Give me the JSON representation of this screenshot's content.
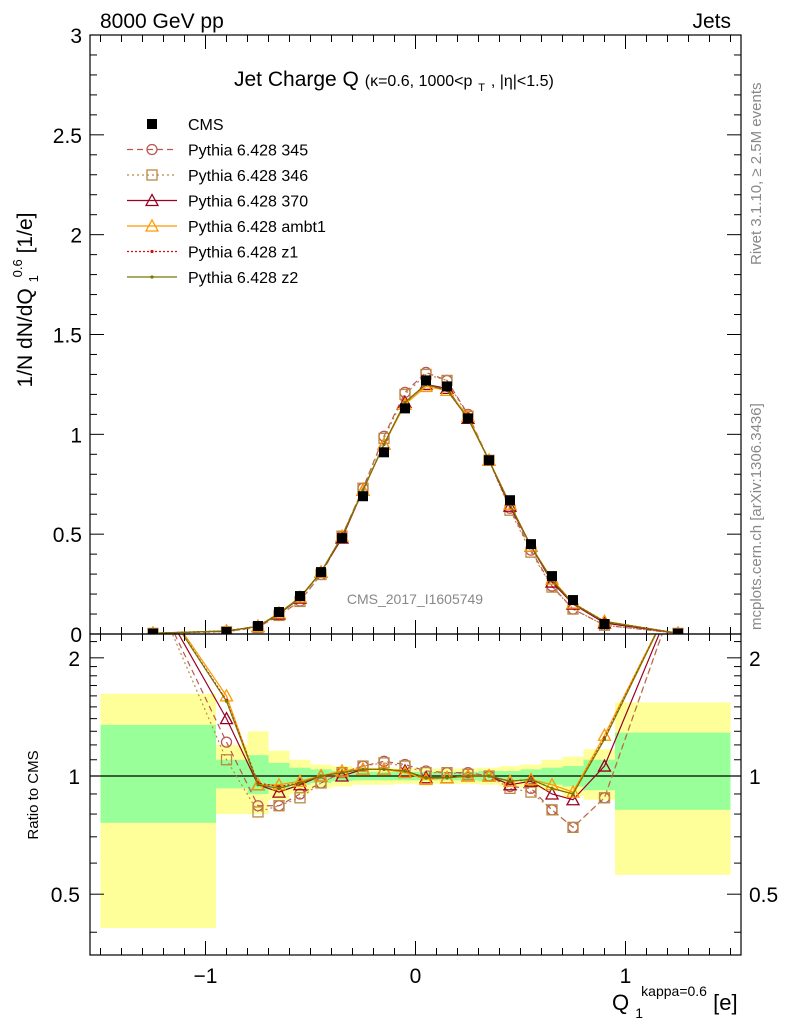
{
  "header": {
    "left": "8000 GeV pp",
    "right": "Jets"
  },
  "side_labels": {
    "rivet": "Rivet 3.1.10, ≥ 2.5M events",
    "mcplots": "mcplots.cern.ch [arXiv:1306.3436]"
  },
  "watermark": "CMS_2017_I1605749",
  "colors": {
    "green_band": "#99ff99",
    "yellow_band": "#ffff99",
    "p345": "#bb5555",
    "p346": "#bb8844",
    "p370": "#990022",
    "ambt1": "#ff9900",
    "z1": "#cc1111",
    "z2": "#777700"
  },
  "chart_data": [
    {
      "type": "line",
      "title": "Jet Charge Q",
      "title_suffix": "(κ=0.6, 1000<p",
      "title_sub": "T",
      "title_tail": ", |η|<1.5)",
      "ylabel": "1/N dN/dQ",
      "ylabel_sub": "1",
      "ylabel_sup": "0.6",
      "ylabel_unit": " [1/e]",
      "xlim": [
        -1.55,
        1.55
      ],
      "ylim": [
        0,
        3
      ],
      "yticks": [
        "0",
        "0.5",
        "1",
        "1.5",
        "2",
        "2.5",
        "3"
      ],
      "x": [
        -1.25,
        -0.9,
        -0.75,
        -0.65,
        -0.55,
        -0.45,
        -0.35,
        -0.25,
        -0.15,
        -0.05,
        0.05,
        0.15,
        0.25,
        0.35,
        0.45,
        0.55,
        0.65,
        0.75,
        0.9,
        1.25
      ],
      "legend": [
        "CMS",
        "Pythia 6.428 345",
        "Pythia 6.428 346",
        "Pythia 6.428 370",
        "Pythia 6.428 ambt1",
        "Pythia 6.428 z1",
        "Pythia 6.428 z2"
      ],
      "series": [
        {
          "name": "CMS",
          "values": [
            0.002,
            0.01,
            0.04,
            0.11,
            0.19,
            0.31,
            0.48,
            0.69,
            0.91,
            1.13,
            1.27,
            1.24,
            1.08,
            0.87,
            0.67,
            0.45,
            0.29,
            0.17,
            0.05,
            0.002
          ]
        },
        {
          "name": "Pythia 6.428 345",
          "values": [
            0.003,
            0.013,
            0.034,
            0.093,
            0.165,
            0.298,
            0.49,
            0.73,
            0.99,
            1.21,
            1.31,
            1.27,
            1.1,
            0.87,
            0.63,
            0.42,
            0.24,
            0.125,
            0.044,
            0.003
          ]
        },
        {
          "name": "Pythia 6.428 346",
          "values": [
            0.003,
            0.011,
            0.033,
            0.093,
            0.163,
            0.298,
            0.49,
            0.73,
            0.98,
            1.2,
            1.3,
            1.27,
            1.09,
            0.87,
            0.62,
            0.41,
            0.235,
            0.125,
            0.044,
            0.003
          ]
        },
        {
          "name": "Pythia 6.428 370",
          "values": [
            0.004,
            0.014,
            0.038,
            0.1,
            0.18,
            0.31,
            0.48,
            0.72,
            0.95,
            1.16,
            1.25,
            1.23,
            1.08,
            0.87,
            0.64,
            0.44,
            0.26,
            0.15,
            0.055,
            0.004
          ]
        },
        {
          "name": "Pythia 6.428 ambt1",
          "values": [
            0.004,
            0.016,
            0.038,
            0.105,
            0.185,
            0.31,
            0.49,
            0.72,
            0.95,
            1.15,
            1.24,
            1.22,
            1.09,
            0.87,
            0.65,
            0.44,
            0.275,
            0.155,
            0.064,
            0.004
          ]
        },
        {
          "name": "Pythia 6.428 z1",
          "values": [
            0.004,
            0.016,
            0.039,
            0.103,
            0.183,
            0.31,
            0.49,
            0.72,
            0.95,
            1.16,
            1.25,
            1.22,
            1.08,
            0.87,
            0.65,
            0.44,
            0.27,
            0.155,
            0.063,
            0.004
          ]
        },
        {
          "name": "Pythia 6.428 z2",
          "values": [
            0.004,
            0.015,
            0.038,
            0.102,
            0.182,
            0.31,
            0.49,
            0.72,
            0.95,
            1.16,
            1.25,
            1.22,
            1.08,
            0.87,
            0.65,
            0.44,
            0.27,
            0.153,
            0.062,
            0.004
          ]
        }
      ]
    },
    {
      "type": "line",
      "ylabel": "Ratio to CMS",
      "xlabel": "Q",
      "xlabel_sub": "1",
      "xlabel_sup": "kappa=0.6",
      "xlabel_unit": " [e]",
      "xlim": [
        -1.55,
        1.55
      ],
      "ylim": [
        0.35,
        2.3
      ],
      "yticks": [
        "0.5",
        "1",
        "2"
      ],
      "xticks": [
        "−1",
        "0",
        "1"
      ],
      "reference_line": 1,
      "bands": [
        {
          "x0": -1.5,
          "x1": -0.95,
          "green": [
            0.76,
            1.35
          ],
          "yellow": [
            0.41,
            1.62
          ]
        },
        {
          "x0": -0.95,
          "x1": -0.8,
          "green": [
            0.93,
            1.1
          ],
          "yellow": [
            0.8,
            1.2
          ]
        },
        {
          "x0": -0.8,
          "x1": -0.7,
          "green": [
            0.9,
            1.13
          ],
          "yellow": [
            0.8,
            1.3
          ]
        },
        {
          "x0": -0.7,
          "x1": -0.6,
          "green": [
            0.93,
            1.08
          ],
          "yellow": [
            0.87,
            1.16
          ]
        },
        {
          "x0": -0.6,
          "x1": -0.5,
          "green": [
            0.95,
            1.05
          ],
          "yellow": [
            0.9,
            1.1
          ]
        },
        {
          "x0": -0.5,
          "x1": -0.4,
          "green": [
            0.96,
            1.04
          ],
          "yellow": [
            0.93,
            1.07
          ]
        },
        {
          "x0": -0.4,
          "x1": -0.3,
          "green": [
            0.97,
            1.03
          ],
          "yellow": [
            0.94,
            1.06
          ]
        },
        {
          "x0": -0.3,
          "x1": -0.2,
          "green": [
            0.975,
            1.025
          ],
          "yellow": [
            0.95,
            1.05
          ]
        },
        {
          "x0": -0.2,
          "x1": -0.1,
          "green": [
            0.975,
            1.025
          ],
          "yellow": [
            0.95,
            1.05
          ]
        },
        {
          "x0": -0.1,
          "x1": 0.0,
          "green": [
            0.975,
            1.025
          ],
          "yellow": [
            0.955,
            1.045
          ]
        },
        {
          "x0": 0.0,
          "x1": 0.1,
          "green": [
            0.975,
            1.025
          ],
          "yellow": [
            0.955,
            1.045
          ]
        },
        {
          "x0": 0.1,
          "x1": 0.2,
          "green": [
            0.975,
            1.025
          ],
          "yellow": [
            0.955,
            1.045
          ]
        },
        {
          "x0": 0.2,
          "x1": 0.3,
          "green": [
            0.975,
            1.025
          ],
          "yellow": [
            0.955,
            1.045
          ]
        },
        {
          "x0": 0.3,
          "x1": 0.4,
          "green": [
            0.97,
            1.03
          ],
          "yellow": [
            0.95,
            1.05
          ]
        },
        {
          "x0": 0.4,
          "x1": 0.5,
          "green": [
            0.97,
            1.03
          ],
          "yellow": [
            0.94,
            1.06
          ]
        },
        {
          "x0": 0.5,
          "x1": 0.6,
          "green": [
            0.96,
            1.04
          ],
          "yellow": [
            0.93,
            1.07
          ]
        },
        {
          "x0": 0.6,
          "x1": 0.7,
          "green": [
            0.95,
            1.05
          ],
          "yellow": [
            0.92,
            1.1
          ]
        },
        {
          "x0": 0.7,
          "x1": 0.8,
          "green": [
            0.94,
            1.06
          ],
          "yellow": [
            0.89,
            1.12
          ]
        },
        {
          "x0": 0.8,
          "x1": 0.95,
          "green": [
            0.92,
            1.1
          ],
          "yellow": [
            0.87,
            1.17
          ]
        },
        {
          "x0": 0.95,
          "x1": 1.5,
          "green": [
            0.82,
            1.29
          ],
          "yellow": [
            0.56,
            1.54
          ]
        }
      ],
      "x": [
        -1.25,
        -0.9,
        -0.75,
        -0.65,
        -0.55,
        -0.45,
        -0.35,
        -0.25,
        -0.15,
        -0.05,
        0.05,
        0.15,
        0.25,
        0.35,
        0.45,
        0.55,
        0.65,
        0.75,
        0.9,
        1.25
      ],
      "series": [
        {
          "name": "Pythia 6.428 345",
          "values": [
            3.0,
            1.22,
            0.84,
            0.84,
            0.9,
            0.96,
            1.02,
            1.06,
            1.09,
            1.07,
            1.03,
            1.02,
            1.02,
            1.0,
            0.94,
            0.93,
            0.82,
            0.74,
            0.88,
            3.0
          ]
        },
        {
          "name": "Pythia 6.428 346",
          "values": [
            3.0,
            1.1,
            0.81,
            0.84,
            0.88,
            0.96,
            1.02,
            1.06,
            1.08,
            1.06,
            1.02,
            1.02,
            1.01,
            1.0,
            0.93,
            0.91,
            0.82,
            0.74,
            0.88,
            3.0
          ]
        },
        {
          "name": "Pythia 6.428 370",
          "values": [
            3.0,
            1.4,
            0.95,
            0.91,
            0.95,
            1.0,
            1.0,
            1.04,
            1.04,
            1.03,
            0.99,
            0.99,
            1.0,
            1.0,
            0.95,
            0.97,
            0.9,
            0.87,
            1.06,
            3.0
          ]
        },
        {
          "name": "Pythia 6.428 ambt1",
          "values": [
            3.0,
            1.6,
            0.95,
            0.95,
            0.97,
            1.0,
            1.03,
            1.04,
            1.04,
            1.02,
            0.98,
            0.99,
            1.0,
            1.0,
            0.97,
            0.98,
            0.95,
            0.91,
            1.27,
            3.0
          ]
        },
        {
          "name": "Pythia 6.428 z1",
          "values": [
            3.0,
            1.56,
            0.96,
            0.94,
            0.96,
            1.0,
            1.02,
            1.04,
            1.04,
            1.03,
            0.99,
            0.99,
            1.0,
            1.0,
            0.97,
            0.98,
            0.93,
            0.9,
            1.25,
            3.0
          ]
        },
        {
          "name": "Pythia 6.428 z2",
          "values": [
            3.0,
            1.55,
            0.95,
            0.93,
            0.96,
            1.0,
            1.02,
            1.04,
            1.04,
            1.03,
            0.99,
            0.99,
            1.0,
            1.0,
            0.97,
            0.98,
            0.93,
            0.9,
            1.24,
            3.0
          ]
        }
      ]
    }
  ]
}
